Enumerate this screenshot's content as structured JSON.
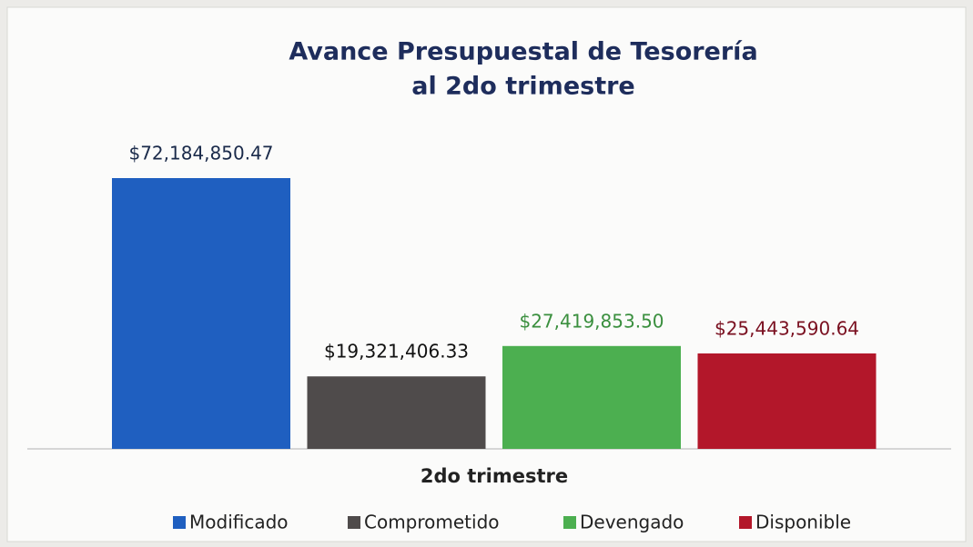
{
  "chart_data": {
    "type": "bar",
    "title": [
      "Avance Presupuestal de Tesorería",
      "al 2do trimestre"
    ],
    "categories": [
      "2do trimestre"
    ],
    "series": [
      {
        "name": "Modificado",
        "color": "#1f5fc0",
        "label_color": "#1a2a4a",
        "values": [
          72184850.47
        ],
        "value_labels": [
          "$72,184,850.47"
        ]
      },
      {
        "name": "Comprometido",
        "color": "#4f4b4b",
        "label_color": "#111111",
        "values": [
          19321406.33
        ],
        "value_labels": [
          "$19,321,406.33"
        ]
      },
      {
        "name": "Devengado",
        "color": "#4caf50",
        "label_color": "#3a8f3e",
        "values": [
          27419853.5
        ],
        "value_labels": [
          "$27,419,853.50"
        ]
      },
      {
        "name": "Disponible",
        "color": "#b3172a",
        "label_color": "#7a1020",
        "values": [
          25443590.64
        ],
        "value_labels": [
          "$25,443,590.64"
        ]
      }
    ],
    "legend": "bottom"
  }
}
